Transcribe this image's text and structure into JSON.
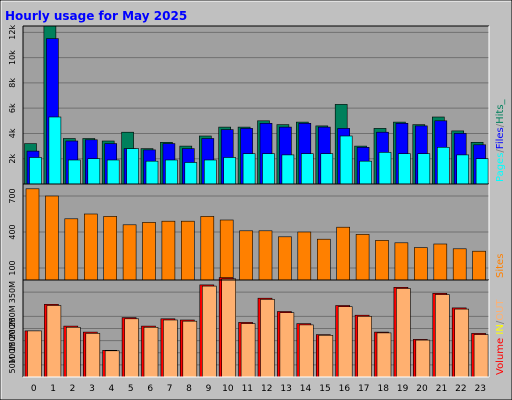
{
  "chart_data": {
    "type": "bar",
    "title": "Hourly usage for May 2025",
    "categories": [
      "0",
      "1",
      "2",
      "3",
      "4",
      "5",
      "6",
      "7",
      "8",
      "9",
      "10",
      "11",
      "12",
      "13",
      "14",
      "15",
      "16",
      "17",
      "18",
      "19",
      "20",
      "21",
      "22",
      "23"
    ],
    "colors": {
      "background": "#c0c0c0",
      "plot": "#a0a0a0",
      "title": "#0000ff",
      "hits": "#00805c",
      "files": "#0000ff",
      "pages": "#00ffff",
      "sites": "#ff8000",
      "visits": "#ff0000",
      "kbytes": "#ff0000",
      "volume_fill": "#ffb070",
      "in": "#ffff00",
      "out": "#ffb070",
      "slash": "#808080"
    },
    "legends": {
      "top": [
        {
          "text": "Pages",
          "color_key": "pages"
        },
        {
          "text": "/",
          "color_key": "slash"
        },
        {
          "text": "Files",
          "color_key": "files"
        },
        {
          "text": "/",
          "color_key": "slash"
        },
        {
          "text": "Hits_",
          "color_key": "hits"
        }
      ],
      "middle": [
        {
          "text": "Sites",
          "color_key": "sites"
        }
      ],
      "bottom": [
        {
          "text": "Volume",
          "color_key": "kbytes"
        },
        {
          "text": " ",
          "color_key": "slash"
        },
        {
          "text": "IN",
          "color_key": "in"
        },
        {
          "text": "/",
          "color_key": "slash"
        },
        {
          "text": "OUT",
          "color_key": "out"
        }
      ]
    },
    "panels": [
      {
        "id": "top",
        "ylim": [
          0,
          12500
        ],
        "ticks": [
          {
            "label": "2k",
            "value": 2000
          },
          {
            "label": "4k",
            "value": 4000
          },
          {
            "label": "6k",
            "value": 6000
          },
          {
            "label": "8k",
            "value": 8000
          },
          {
            "label": "10k",
            "value": 10000
          },
          {
            "label": "12k",
            "value": 12000
          }
        ],
        "series": [
          {
            "name": "Hits",
            "values": [
              3200,
              12500,
              3600,
              3600,
              3400,
              4100,
              2800,
              3300,
              3000,
              3800,
              4500,
              4500,
              5000,
              4700,
              4900,
              4600,
              6300,
              3000,
              4400,
              4900,
              4700,
              5300,
              4200,
              3300
            ]
          },
          {
            "name": "Files",
            "values": [
              2600,
              11500,
              3400,
              3500,
              3200,
              2800,
              2700,
              3200,
              2800,
              3600,
              4300,
              4400,
              4800,
              4500,
              4800,
              4500,
              4400,
              2900,
              4100,
              4800,
              4600,
              5000,
              4000,
              3100
            ]
          },
          {
            "name": "Pages",
            "values": [
              2100,
              5300,
              1900,
              2000,
              1900,
              2800,
              1800,
              1900,
              1700,
              1900,
              2100,
              2400,
              2400,
              2300,
              2400,
              2400,
              3800,
              1800,
              2500,
              2400,
              2400,
              2900,
              2300,
              2000
            ]
          }
        ]
      },
      {
        "id": "middle",
        "ylim": [
          0,
          800
        ],
        "ticks": [
          {
            "label": "100",
            "value": 100
          },
          {
            "label": "400",
            "value": 400
          },
          {
            "label": "700",
            "value": 700
          }
        ],
        "series": [
          {
            "name": "Sites",
            "values": [
              760,
              700,
              510,
              550,
              530,
              460,
              480,
              490,
              490,
              530,
              500,
              410,
              410,
              360,
              400,
              340,
              440,
              380,
              330,
              310,
              270,
              300,
              260,
              240
            ]
          }
        ]
      },
      {
        "id": "bottom",
        "ylim": [
          0,
          400
        ],
        "ticks": [
          {
            "label": "50M",
            "value": 50
          },
          {
            "label": "100M",
            "value": 100
          },
          {
            "label": "150M",
            "value": 150
          },
          {
            "label": "200M",
            "value": 200
          },
          {
            "label": "250M",
            "value": 250
          },
          {
            "label": "350M",
            "value": 350
          }
        ],
        "series": [
          {
            "name": "KBytes",
            "values": [
              190,
              300,
              210,
              185,
              110,
              245,
              210,
              240,
              235,
              380,
              410,
              225,
              325,
              270,
              220,
              175,
              295,
              255,
              185,
              370,
              155,
              345,
              285,
              180
            ]
          },
          {
            "name": "Volume",
            "values": [
              190,
              295,
              205,
              180,
              108,
              240,
              205,
              235,
              230,
              375,
              405,
              220,
              320,
              265,
              215,
              172,
              290,
              250,
              182,
              365,
              152,
              340,
              280,
              175
            ]
          }
        ]
      }
    ]
  }
}
